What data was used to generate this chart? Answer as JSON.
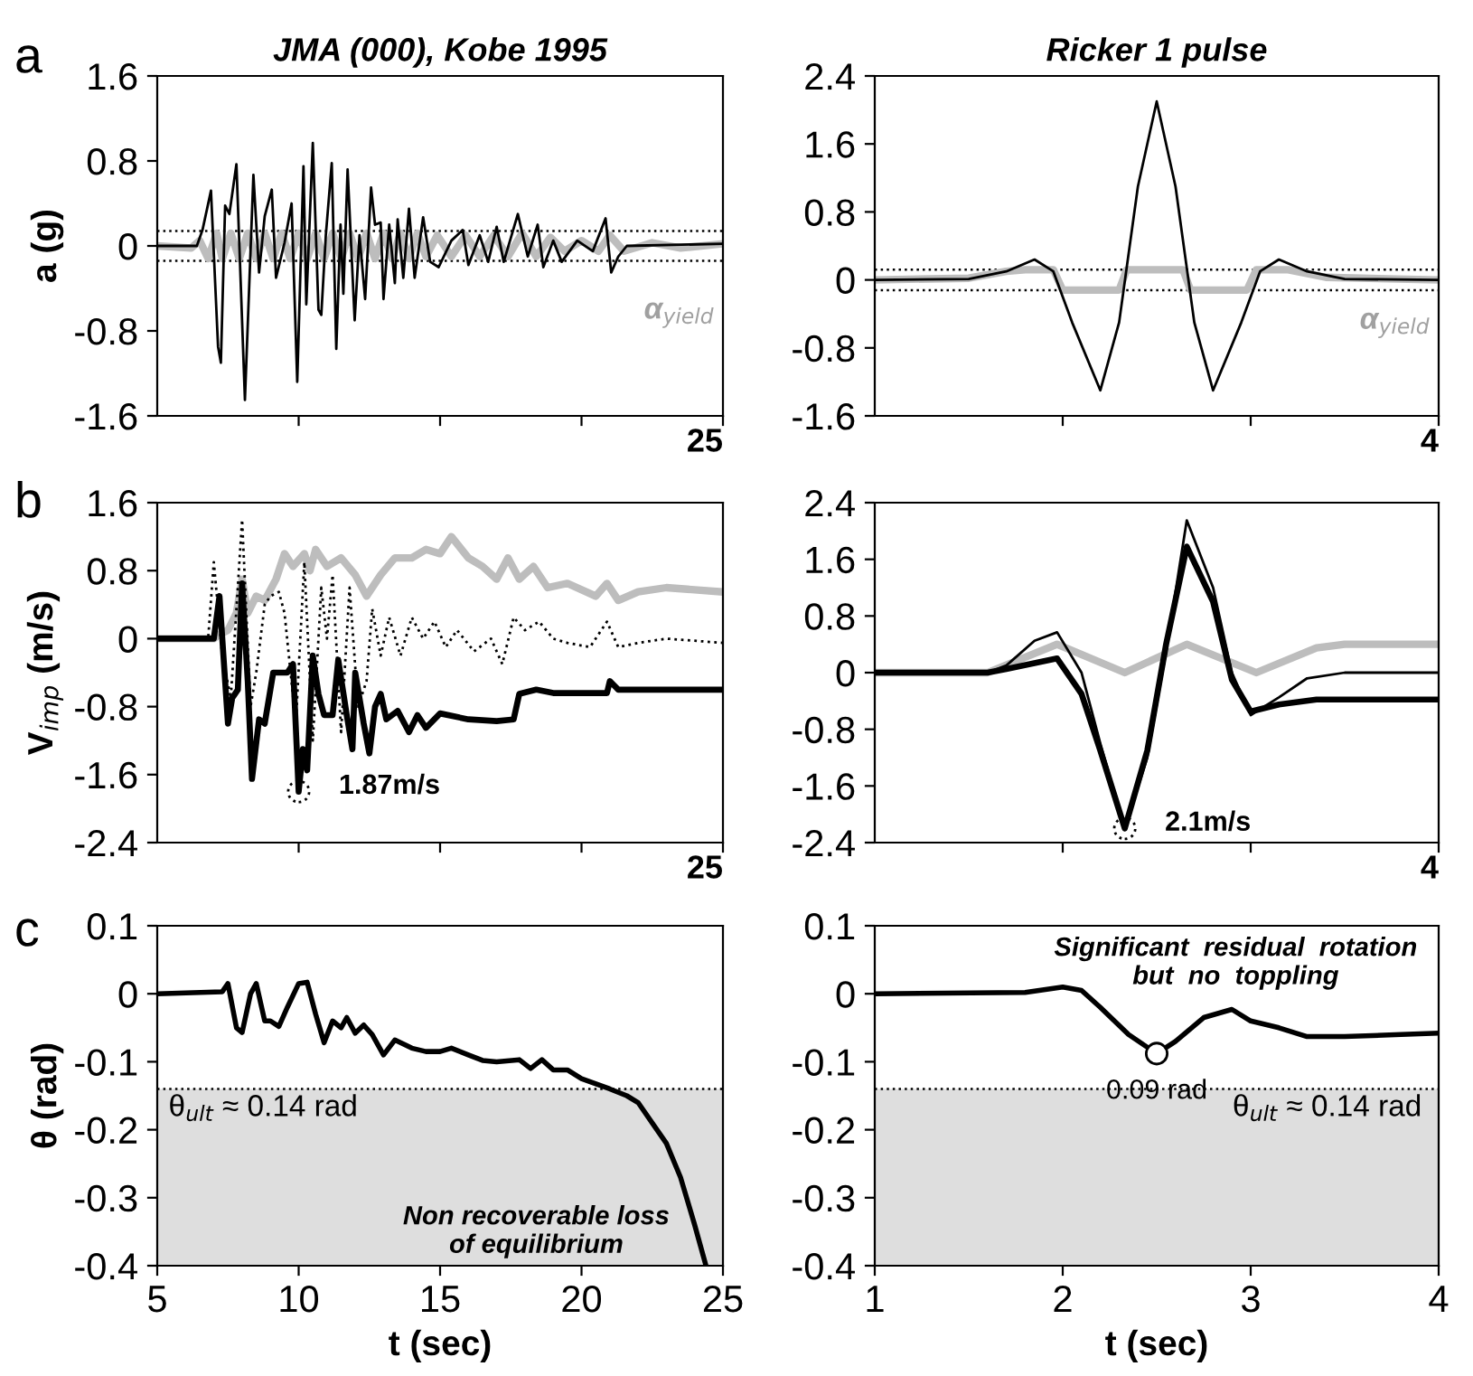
{
  "chart_data": [
    {
      "type": "line",
      "title": "JMA (000), Kobe 1995",
      "ylabel": "a (g)",
      "xlim": [
        5,
        25
      ],
      "ylim": [
        -1.6,
        1.6
      ],
      "tick_labels": "y",
      "xticks": [
        {
          "value": 10,
          "label": null
        },
        {
          "value": 15,
          "label": null
        },
        {
          "value": 20,
          "label": null
        },
        {
          "value": 25,
          "label": null
        }
      ],
      "yticks": [
        -1.6,
        -0.8,
        0,
        0.8,
        1.6
      ],
      "series": [
        {
          "color": "#000000",
          "line_style": "solid",
          "x": [
            5,
            6.4,
            6.6,
            6.9,
            7.15,
            7.25,
            7.4,
            7.55,
            7.8,
            8.1,
            8.4,
            8.6,
            8.8,
            9.05,
            9.2,
            9.5,
            9.75,
            9.95,
            10.17,
            10.27,
            10.5,
            10.7,
            10.8,
            10.96,
            11.17,
            11.33,
            11.48,
            11.58,
            11.73,
            11.98,
            12.15,
            12.35,
            12.56,
            12.7,
            12.9,
            13.0,
            13.2,
            13.4,
            13.5,
            13.7,
            13.9,
            14.1,
            14.4,
            14.65,
            14.95,
            15.4,
            15.8,
            16.0,
            16.4,
            16.7,
            17.0,
            17.25,
            17.75,
            18.1,
            18.45,
            18.65,
            19.0,
            19.3,
            19.85,
            20.4,
            20.85,
            21.05,
            21.3,
            21.6,
            25
          ],
          "values": [
            0,
            0,
            0.15,
            0.52,
            -0.95,
            -1.1,
            0.38,
            0.3,
            0.77,
            -1.45,
            0.67,
            -0.25,
            0.28,
            0.53,
            -0.3,
            0.03,
            0.4,
            -1.28,
            0.75,
            -0.55,
            0.97,
            -0.6,
            -0.65,
            0.1,
            0.78,
            -0.97,
            0.2,
            -0.45,
            0.72,
            -0.7,
            0.1,
            -0.5,
            0.55,
            0.2,
            0.22,
            -0.5,
            0.2,
            -0.35,
            0.25,
            -0.3,
            0.35,
            -0.3,
            0.27,
            -0.15,
            -0.2,
            0.05,
            0.15,
            -0.18,
            0.1,
            -0.15,
            0.18,
            -0.15,
            0.3,
            -0.1,
            0.2,
            -0.2,
            0.05,
            -0.15,
            0.05,
            -0.05,
            0.26,
            -0.25,
            -0.1,
            0,
            0.02
          ]
        },
        {
          "color": "#bdbdbd",
          "line_style": "solid",
          "x": [
            5,
            6.2,
            6.5,
            6.8,
            7.1,
            7.3,
            7.6,
            7.9,
            8.2,
            8.5,
            8.8,
            9.1,
            9.4,
            9.7,
            10.0,
            10.3,
            10.6,
            10.9,
            11.2,
            11.5,
            11.8,
            12.1,
            12.4,
            12.7,
            13.0,
            13.3,
            13.6,
            13.9,
            14.2,
            14.5,
            14.9,
            15.4,
            15.9,
            16.4,
            16.9,
            17.4,
            17.9,
            18.4,
            18.9,
            19.4,
            20.0,
            20.6,
            21.0,
            21.5,
            22.5,
            23.5,
            25
          ],
          "values": [
            0,
            -0.02,
            0.05,
            -0.12,
            0.12,
            -0.12,
            0.12,
            -0.12,
            0.12,
            -0.12,
            0.12,
            -0.12,
            0.12,
            -0.12,
            0.12,
            -0.12,
            0.12,
            -0.12,
            0.12,
            -0.12,
            0.12,
            -0.12,
            0.12,
            -0.12,
            0.12,
            -0.12,
            0.12,
            -0.12,
            0.12,
            -0.1,
            0.1,
            -0.1,
            0.1,
            -0.1,
            0.1,
            -0.1,
            0.12,
            -0.1,
            0.08,
            -0.05,
            0.05,
            -0.05,
            0.1,
            -0.05,
            0.03,
            -0.02,
            0.02
          ]
        }
      ],
      "ref_lines": [
        {
          "axis": "y",
          "value": 0.14,
          "color": "#000000",
          "line_style": "dotted"
        },
        {
          "axis": "y",
          "value": -0.14,
          "color": "#000000",
          "line_style": "dotted"
        }
      ],
      "annotations": [
        "a",
        "α$_{yield}$",
        "25"
      ]
    },
    {
      "type": "line",
      "title": "Ricker 1 pulse",
      "xlim": [
        1,
        4
      ],
      "ylim": [
        -1.6,
        2.4
      ],
      "tick_labels": "y",
      "xticks": [
        {
          "value": 2,
          "label": null
        },
        {
          "value": 3,
          "label": null
        },
        {
          "value": 4,
          "label": null
        }
      ],
      "yticks": [
        -1.6,
        -0.8,
        0,
        0.8,
        1.6,
        2.4
      ],
      "series": [
        {
          "color": "#000000",
          "line_style": "solid",
          "x": [
            1,
            1.5,
            1.7,
            1.85,
            1.95,
            2.05,
            2.2,
            2.3,
            2.4,
            2.5,
            2.6,
            2.7,
            2.8,
            2.95,
            3.05,
            3.15,
            3.3,
            3.5,
            4
          ],
          "values": [
            0,
            0.01,
            0.1,
            0.24,
            0.1,
            -0.5,
            -1.3,
            -0.5,
            1.1,
            2.1,
            1.1,
            -0.5,
            -1.3,
            -0.5,
            0.1,
            0.24,
            0.1,
            0.01,
            0
          ]
        },
        {
          "color": "#bdbdbd",
          "line_style": "solid",
          "x": [
            1,
            1.5,
            1.7,
            1.8,
            1.95,
            2.0,
            2.3,
            2.34,
            2.64,
            2.68,
            2.98,
            3.03,
            3.2,
            3.4,
            4
          ],
          "values": [
            0,
            0.02,
            0.1,
            0.12,
            0.12,
            -0.12,
            -0.12,
            0.12,
            0.12,
            -0.12,
            -0.12,
            0.12,
            0.12,
            0.03,
            0
          ]
        }
      ],
      "ref_lines": [
        {
          "axis": "y",
          "value": 0.12,
          "color": "#000000",
          "line_style": "dotted"
        },
        {
          "axis": "y",
          "value": -0.12,
          "color": "#000000",
          "line_style": "dotted"
        }
      ],
      "annotations": [
        "α$_{yield}$",
        "4"
      ]
    },
    {
      "type": "line",
      "ylabel": "V$_{imp}$ (m/s)",
      "xlim": [
        5,
        25
      ],
      "ylim": [
        -2.4,
        1.6
      ],
      "tick_labels": "y",
      "xticks": [
        {
          "value": 10,
          "label": null
        },
        {
          "value": 15,
          "label": null
        },
        {
          "value": 20,
          "label": null
        },
        {
          "value": 25,
          "label": null
        }
      ],
      "yticks": [
        -2.4,
        -1.6,
        -0.8,
        0,
        0.8,
        1.6
      ],
      "series": [
        {
          "color": "#bdbdbd",
          "line_style": "solid",
          "x": [
            5,
            7,
            7.2,
            7.5,
            7.8,
            8.0,
            8.2,
            8.5,
            8.8,
            9.2,
            9.5,
            9.8,
            10.2,
            10.4,
            10.6,
            11.0,
            11.5,
            12.0,
            12.4,
            12.9,
            13.4,
            14.0,
            14.5,
            15.0,
            15.4,
            16.0,
            16.5,
            17.0,
            17.4,
            17.8,
            18.3,
            18.8,
            19.5,
            20.5,
            20.9,
            21.3,
            22,
            23,
            25
          ],
          "values": [
            0,
            0,
            0.05,
            0.1,
            0.3,
            0.7,
            0.3,
            0.5,
            0.45,
            0.7,
            1.0,
            0.85,
            1.0,
            0.8,
            1.05,
            0.85,
            0.95,
            0.75,
            0.5,
            0.75,
            0.95,
            0.95,
            1.05,
            1.0,
            1.2,
            0.95,
            0.85,
            0.7,
            0.95,
            0.7,
            0.85,
            0.6,
            0.65,
            0.5,
            0.65,
            0.45,
            0.55,
            0.6,
            0.55
          ]
        },
        {
          "color": "#000000",
          "line_style": "dotted",
          "x": [
            5,
            6.8,
            7.0,
            7.3,
            7.6,
            8.0,
            8.3,
            8.5,
            8.8,
            9.0,
            9.3,
            9.5,
            9.9,
            10.2,
            10.5,
            10.8,
            11.0,
            11.2,
            11.5,
            11.8,
            12.1,
            12.4,
            12.6,
            12.9,
            13.2,
            13.6,
            14.0,
            14.4,
            14.8,
            15.2,
            15.6,
            16.2,
            16.8,
            17.2,
            17.6,
            18.0,
            18.5,
            19.0,
            19.5,
            20.3,
            20.9,
            21.3,
            22,
            23,
            25
          ],
          "values": [
            0,
            0,
            0.9,
            -0.2,
            -0.7,
            1.4,
            -0.8,
            -0.4,
            0.4,
            0.5,
            0.55,
            0.3,
            -1.0,
            0.9,
            -1.2,
            0.6,
            0.0,
            0.75,
            -1.1,
            0.6,
            -0.8,
            -0.5,
            0.35,
            -0.2,
            0.25,
            -0.2,
            0.25,
            0.0,
            0.2,
            -0.1,
            0.1,
            -0.15,
            0.0,
            -0.3,
            0.25,
            0.1,
            0.2,
            0.0,
            -0.05,
            -0.1,
            0.2,
            -0.1,
            -0.05,
            0.0,
            -0.05
          ]
        },
        {
          "color": "#000000",
          "line_style": "solid",
          "x": [
            5,
            7.0,
            7.2,
            7.5,
            7.65,
            7.85,
            8.0,
            8.2,
            8.35,
            8.6,
            8.8,
            9.1,
            9.6,
            9.8,
            10.0,
            10.15,
            10.3,
            10.5,
            10.7,
            10.9,
            11.2,
            11.4,
            11.7,
            11.9,
            12.0,
            12.3,
            12.5,
            12.7,
            12.9,
            13.1,
            13.5,
            13.9,
            14.2,
            14.5,
            15.0,
            16.0,
            17.0,
            17.6,
            17.8,
            18.4,
            19.0,
            20.0,
            20.9,
            21.0,
            21.3,
            25
          ],
          "values": [
            0,
            0,
            0.5,
            -1.0,
            -0.7,
            -0.6,
            0.65,
            -0.5,
            -1.65,
            -0.95,
            -1.0,
            -0.4,
            -0.4,
            -0.3,
            -1.8,
            -1.3,
            -1.55,
            -0.2,
            -0.65,
            -0.9,
            -0.9,
            -0.25,
            -0.9,
            -1.3,
            -0.4,
            -1.0,
            -1.35,
            -0.8,
            -0.65,
            -0.95,
            -0.85,
            -1.1,
            -0.9,
            -1.05,
            -0.88,
            -0.95,
            -0.97,
            -0.95,
            -0.65,
            -0.6,
            -0.64,
            -0.64,
            -0.64,
            -0.5,
            -0.6,
            -0.6
          ]
        }
      ],
      "annotations": [
        "b",
        {
          "text": "1.87m/s",
          "x": 10.0,
          "y": -1.8
        },
        "25"
      ]
    },
    {
      "type": "line",
      "xlim": [
        1,
        4
      ],
      "ylim": [
        -2.4,
        2.4
      ],
      "tick_labels": "y",
      "xticks": [
        {
          "value": 2,
          "label": null
        },
        {
          "value": 3,
          "label": null
        },
        {
          "value": 4,
          "label": null
        }
      ],
      "yticks": [
        -2.4,
        -1.6,
        -0.8,
        0,
        0.8,
        1.6,
        2.4
      ],
      "series": [
        {
          "color": "#bdbdbd",
          "line_style": "solid",
          "x": [
            1,
            1.6,
            1.97,
            2.33,
            2.66,
            3.03,
            3.35,
            3.5,
            4
          ],
          "values": [
            0,
            0,
            0.4,
            0,
            0.4,
            0,
            0.35,
            0.4,
            0.4
          ]
        },
        {
          "color": "#000000",
          "line_style": "solid",
          "x": [
            1,
            1.6,
            1.7,
            1.85,
            1.97,
            2.1,
            2.2,
            2.33,
            2.45,
            2.55,
            2.66,
            2.8,
            2.9,
            3.0,
            3.15,
            3.3,
            3.5,
            4
          ],
          "values": [
            0,
            0,
            0.1,
            0.45,
            0.57,
            0,
            -1.0,
            -2.2,
            -1.2,
            0.3,
            2.15,
            1.2,
            0,
            -0.6,
            -0.35,
            -0.08,
            0,
            0
          ]
        },
        {
          "color": "#000000",
          "line_style": "solid",
          "x": [
            1,
            1.6,
            1.7,
            1.97,
            2.1,
            2.2,
            2.33,
            2.45,
            2.55,
            2.66,
            2.8,
            2.9,
            3.0,
            3.15,
            3.35,
            4
          ],
          "values": [
            0,
            0,
            0.05,
            0.2,
            -0.3,
            -1.1,
            -2.2,
            -1.1,
            0.4,
            1.78,
            1.0,
            -0.1,
            -0.55,
            -0.45,
            -0.38,
            -0.38
          ]
        }
      ],
      "annotations": [
        {
          "text": "2.1m/s",
          "x": 2.33,
          "y": -2.2
        },
        "4"
      ]
    },
    {
      "type": "line",
      "ylabel": "θ (rad)",
      "xlabel": "t (sec)",
      "xlim": [
        5,
        25
      ],
      "ylim": [
        -0.4,
        0.1
      ],
      "xticks": [
        5,
        10,
        15,
        20,
        25
      ],
      "yticks": [
        -0.4,
        -0.3,
        -0.2,
        -0.1,
        0,
        0.1
      ],
      "series": [
        {
          "color": "#000000",
          "line_style": "solid",
          "x": [
            5,
            7.3,
            7.5,
            7.8,
            8.0,
            8.3,
            8.5,
            8.8,
            9.0,
            9.3,
            9.6,
            10.0,
            10.3,
            10.6,
            10.9,
            11.2,
            11.5,
            11.7,
            12.0,
            12.3,
            12.6,
            13.0,
            13.4,
            14.0,
            14.5,
            15.0,
            15.4,
            16.0,
            16.5,
            17.0,
            17.8,
            18.2,
            18.6,
            19.0,
            19.5,
            20.0,
            21.0,
            21.6,
            22.0,
            22.5,
            23.0,
            23.5,
            24.0,
            24.4
          ],
          "values": [
            0,
            0.003,
            0.015,
            -0.05,
            -0.057,
            0.0,
            0.015,
            -0.04,
            -0.04,
            -0.048,
            -0.02,
            0.015,
            0.017,
            -0.03,
            -0.072,
            -0.04,
            -0.05,
            -0.035,
            -0.058,
            -0.046,
            -0.06,
            -0.09,
            -0.068,
            -0.08,
            -0.085,
            -0.085,
            -0.08,
            -0.09,
            -0.098,
            -0.1,
            -0.097,
            -0.11,
            -0.097,
            -0.112,
            -0.112,
            -0.125,
            -0.14,
            -0.15,
            -0.16,
            -0.19,
            -0.22,
            -0.27,
            -0.34,
            -0.4
          ]
        }
      ],
      "ref_lines": [
        {
          "axis": "y",
          "value": -0.14,
          "color": "#000000",
          "line_style": "dotted"
        }
      ],
      "bands": [
        {
          "axis": "y",
          "from": -0.4,
          "to": -0.14,
          "label": "θ$_{ult}$ ≈ 0.14 rad",
          "color": "#dedede"
        }
      ],
      "annotations": [
        "c",
        "Non recoverable loss\nof equilibrium"
      ]
    },
    {
      "type": "line",
      "xlabel": "t (sec)",
      "xlim": [
        1,
        4
      ],
      "ylim": [
        -0.4,
        0.1
      ],
      "xticks": [
        1,
        2,
        3,
        4
      ],
      "yticks": [
        -0.4,
        -0.3,
        -0.2,
        -0.1,
        0,
        0.1
      ],
      "series": [
        {
          "color": "#000000",
          "line_style": "solid",
          "x": [
            1,
            1.8,
            2.0,
            2.1,
            2.2,
            2.35,
            2.5,
            2.6,
            2.75,
            2.9,
            3.0,
            3.15,
            3.3,
            3.5,
            3.8,
            4.0
          ],
          "values": [
            0,
            0.002,
            0.01,
            0.005,
            -0.02,
            -0.06,
            -0.088,
            -0.07,
            -0.035,
            -0.023,
            -0.04,
            -0.05,
            -0.063,
            -0.063,
            -0.06,
            -0.058
          ]
        }
      ],
      "ref_lines": [
        {
          "axis": "y",
          "value": -0.14,
          "color": "#000000",
          "line_style": "dotted"
        }
      ],
      "bands": [
        {
          "axis": "y",
          "from": -0.4,
          "to": -0.14,
          "label": "θ$_{ult}$ ≈ 0.14 rad",
          "color": "#dedede"
        }
      ],
      "annotations": [
        {
          "text": "0.09 rad",
          "x": 2.5,
          "y": -0.088
        },
        "Significant  residual  rotation\nbut  no  toppling"
      ]
    }
  ]
}
